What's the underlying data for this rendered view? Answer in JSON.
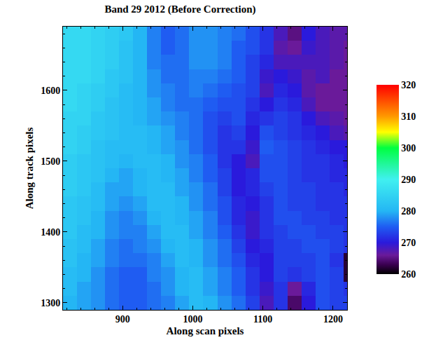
{
  "chart_data": {
    "type": "heatmap",
    "title": "Band 29 2012 (Before Correction)",
    "xlabel": "Along scan pixels",
    "ylabel": "Along track pixels",
    "xlim": [
      815,
      1220
    ],
    "ylim": [
      1290,
      1690
    ],
    "xticks": [
      900,
      1000,
      1100,
      1200
    ],
    "yticks": [
      1300,
      1400,
      1500,
      1600
    ],
    "zlim": [
      260,
      320
    ],
    "zticks": [
      260,
      270,
      280,
      290,
      300,
      310,
      320
    ],
    "grid": false,
    "x": [
      825,
      845,
      865,
      885,
      905,
      925,
      945,
      965,
      985,
      1005,
      1025,
      1045,
      1065,
      1085,
      1105,
      1125,
      1145,
      1165,
      1185,
      1205,
      1225
    ],
    "y": [
      1300,
      1320,
      1340,
      1360,
      1380,
      1400,
      1420,
      1440,
      1460,
      1480,
      1500,
      1520,
      1540,
      1560,
      1580,
      1600,
      1620,
      1640,
      1660,
      1680
    ],
    "z": [
      [
        280,
        279,
        278,
        276,
        275,
        275,
        276,
        277,
        279,
        281,
        280,
        278,
        276,
        273,
        268,
        272,
        264,
        270,
        274,
        273,
        273
      ],
      [
        281,
        279,
        278,
        276,
        275,
        275,
        276,
        278,
        280,
        281,
        279,
        277,
        275,
        272,
        269,
        272,
        266,
        271,
        274,
        273,
        272
      ],
      [
        281,
        280,
        278,
        276,
        275,
        275,
        277,
        278,
        280,
        281,
        279,
        277,
        275,
        272,
        270,
        273,
        272,
        273,
        274,
        273,
        262
      ],
      [
        282,
        280,
        279,
        277,
        276,
        276,
        277,
        279,
        281,
        280,
        278,
        276,
        274,
        271,
        270,
        273,
        273,
        273,
        274,
        272,
        262
      ],
      [
        282,
        281,
        279,
        277,
        276,
        277,
        278,
        280,
        281,
        280,
        278,
        276,
        273,
        270,
        271,
        273,
        273,
        274,
        274,
        273,
        272
      ],
      [
        283,
        281,
        280,
        278,
        277,
        277,
        279,
        281,
        281,
        279,
        277,
        275,
        272,
        269,
        272,
        273,
        274,
        274,
        273,
        273,
        272
      ],
      [
        283,
        282,
        280,
        278,
        277,
        278,
        280,
        281,
        280,
        279,
        277,
        274,
        271,
        269,
        272,
        274,
        274,
        273,
        273,
        272,
        272
      ],
      [
        283,
        282,
        281,
        279,
        278,
        279,
        281,
        281,
        280,
        278,
        276,
        274,
        271,
        270,
        272,
        274,
        273,
        273,
        272,
        272,
        272
      ],
      [
        284,
        283,
        281,
        279,
        279,
        280,
        281,
        281,
        279,
        278,
        276,
        273,
        270,
        271,
        273,
        274,
        273,
        273,
        272,
        272,
        271
      ],
      [
        284,
        283,
        282,
        280,
        279,
        280,
        281,
        280,
        279,
        277,
        275,
        273,
        270,
        271,
        274,
        274,
        273,
        272,
        272,
        271,
        271
      ],
      [
        284,
        283,
        282,
        281,
        280,
        281,
        281,
        280,
        278,
        277,
        275,
        272,
        270,
        268,
        274,
        274,
        273,
        272,
        272,
        271,
        270
      ],
      [
        285,
        284,
        282,
        281,
        281,
        281,
        280,
        279,
        278,
        276,
        274,
        272,
        272,
        269,
        275,
        274,
        273,
        272,
        271,
        270,
        270
      ],
      [
        285,
        284,
        283,
        282,
        281,
        281,
        280,
        279,
        277,
        276,
        274,
        272,
        273,
        270,
        274,
        273,
        272,
        271,
        270,
        268,
        267
      ],
      [
        285,
        285,
        283,
        282,
        281,
        280,
        279,
        278,
        277,
        276,
        274,
        273,
        274,
        271,
        272,
        273,
        272,
        270,
        268,
        267,
        266
      ],
      [
        286,
        285,
        284,
        282,
        281,
        280,
        279,
        277,
        276,
        276,
        275,
        274,
        274,
        272,
        270,
        272,
        271,
        268,
        266,
        266,
        266
      ],
      [
        286,
        285,
        284,
        283,
        281,
        280,
        278,
        277,
        276,
        277,
        276,
        275,
        274,
        273,
        268,
        271,
        270,
        267,
        266,
        266,
        266
      ],
      [
        286,
        286,
        285,
        283,
        282,
        280,
        278,
        276,
        276,
        277,
        277,
        276,
        275,
        273,
        269,
        270,
        269,
        267,
        268,
        266,
        266
      ],
      [
        286,
        286,
        285,
        284,
        282,
        280,
        277,
        276,
        276,
        278,
        278,
        277,
        275,
        273,
        271,
        268,
        268,
        268,
        268,
        267,
        266
      ],
      [
        286,
        286,
        285,
        284,
        282,
        280,
        277,
        275,
        276,
        278,
        278,
        277,
        275,
        274,
        272,
        267,
        266,
        269,
        268,
        267,
        266
      ],
      [
        286,
        286,
        285,
        284,
        283,
        280,
        277,
        275,
        276,
        278,
        278,
        277,
        276,
        274,
        272,
        268,
        265,
        270,
        268,
        267,
        267
      ]
    ]
  }
}
